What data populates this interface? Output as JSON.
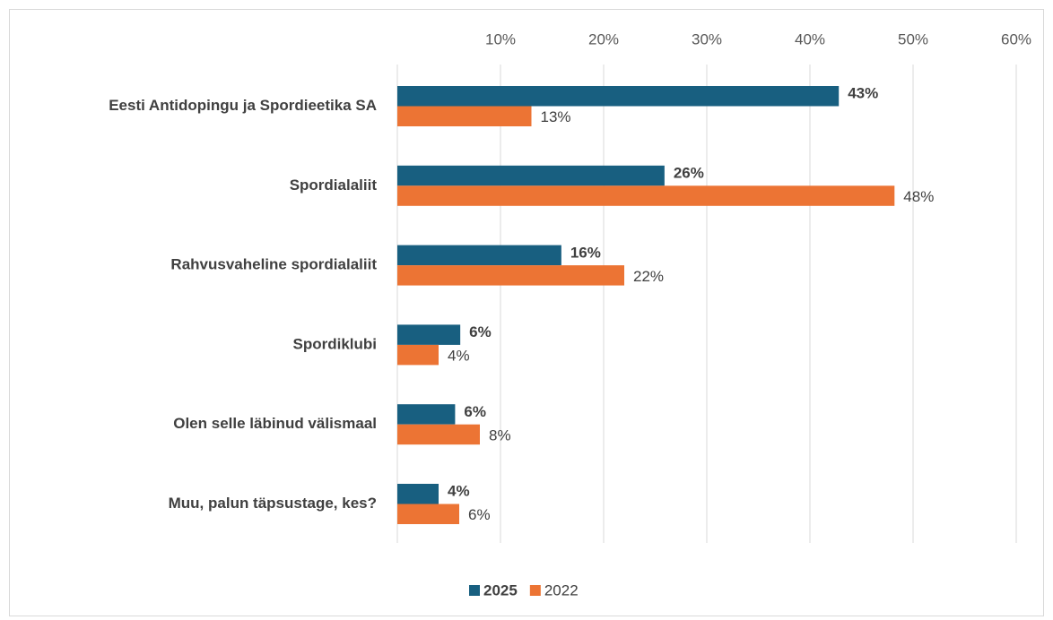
{
  "chart_data": {
    "type": "hbar",
    "categories": [
      "Eesti Antidopingu ja Spordieetika SA",
      "Spordialaliit",
      "Rahvusvaheline spordialaliit",
      "Spordiklubi",
      "Olen selle läbinud välismaal",
      "Muu, palun täpsustage, kes?"
    ],
    "series": [
      {
        "name": "2025",
        "color": "#185f80",
        "values": [
          42.8,
          25.9,
          15.9,
          6.1,
          5.6,
          4.0
        ],
        "value_labels": [
          "43%",
          "26%",
          "16%",
          "6%",
          "6%",
          "4%"
        ]
      },
      {
        "name": "2022",
        "color": "#ec7434",
        "values": [
          13.0,
          48.2,
          22.0,
          4.0,
          8.0,
          6.0
        ],
        "value_labels": [
          "13%",
          "48%",
          "22%",
          "4%",
          "8%",
          "6%"
        ]
      }
    ],
    "xlim": [
      0,
      60
    ],
    "xticks": [
      {
        "value": 10,
        "label": "10%"
      },
      {
        "value": 20,
        "label": "20%"
      },
      {
        "value": 30,
        "label": "30%"
      },
      {
        "value": 40,
        "label": "40%"
      },
      {
        "value": 50,
        "label": "50%"
      },
      {
        "value": 60,
        "label": "60%"
      }
    ],
    "grid": true,
    "legend": "bottom"
  }
}
